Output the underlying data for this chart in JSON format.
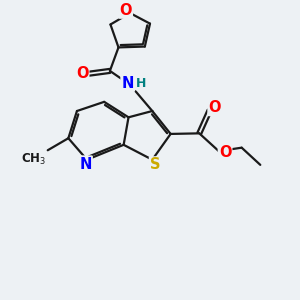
{
  "background_color": "#edf1f4",
  "bond_color": "#1a1a1a",
  "bond_width": 1.6,
  "atom_colors": {
    "O": "#ff0000",
    "N": "#0000ff",
    "S": "#ccaa00",
    "H_amide": "#008080",
    "C": "#1a1a1a"
  },
  "font_size_atoms": 10.5,
  "font_size_H": 9.0
}
